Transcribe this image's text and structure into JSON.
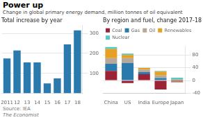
{
  "title": "Power up",
  "subtitle": "Change in global primary energy demand, million tonnes of oil equivalent",
  "annotations": [
    "Source: IEA",
    "The Economist"
  ],
  "chart_data": [
    {
      "type": "bar",
      "title": "Total increase by year",
      "categories": [
        "2011",
        "12",
        "13",
        "14",
        "15",
        "16",
        "17",
        "18"
      ],
      "values": [
        175,
        215,
        155,
        155,
        50,
        75,
        245,
        315
      ],
      "color": "#2a7aad",
      "ylim": [
        0,
        340
      ],
      "yticks": [
        100,
        200,
        300
      ],
      "grid": true
    },
    {
      "type": "bar",
      "title": "By region and fuel, change 2017-18",
      "categories": [
        "China",
        "US",
        "India",
        "Europe",
        "Japan"
      ],
      "series": [
        {
          "name": "Coal",
          "color": "#9b2335",
          "values": [
            30,
            -8,
            20,
            -28,
            -3
          ]
        },
        {
          "name": "Gas",
          "color": "#2a7aad",
          "values": [
            22,
            55,
            7,
            8,
            1
          ]
        },
        {
          "name": "Oil",
          "color": "#b8a89a",
          "values": [
            18,
            15,
            7,
            8,
            -3
          ]
        },
        {
          "name": "Renewables",
          "color": "#e8a020",
          "values": [
            28,
            10,
            5,
            12,
            2
          ]
        },
        {
          "name": "Nuclear",
          "color": "#5bc8c8",
          "values": [
            7,
            4,
            1,
            2,
            6
          ]
        }
      ],
      "stacked": true,
      "ylim": [
        -40,
        105
      ],
      "yticks": [
        -40,
        0,
        40,
        80
      ],
      "grid": true,
      "legend": "top"
    }
  ]
}
